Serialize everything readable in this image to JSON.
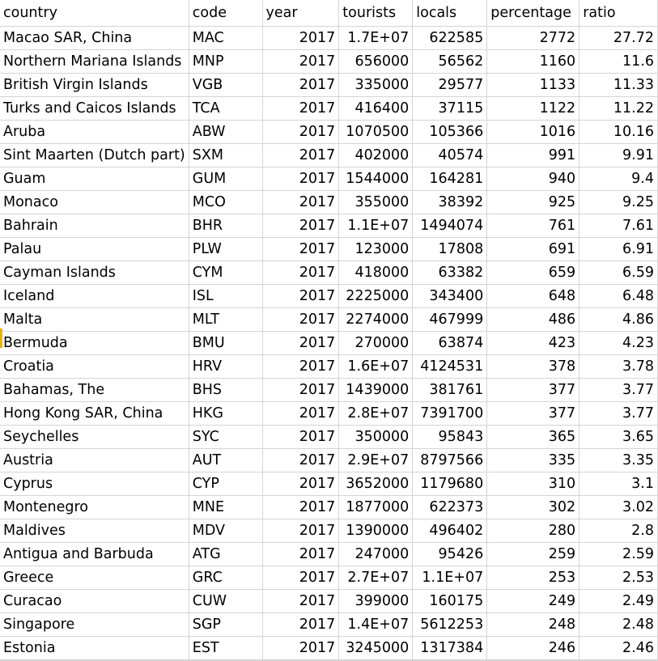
{
  "columns": [
    "country",
    "code",
    "year",
    "tourists",
    "locals",
    "percentage",
    "ratio"
  ],
  "rows": [
    [
      "Macao SAR, China",
      "MAC",
      "2017",
      "1.7E+07",
      "622585",
      "2772",
      "27.72"
    ],
    [
      "Northern Mariana Islands",
      "MNP",
      "2017",
      "656000",
      "56562",
      "1160",
      "11.6"
    ],
    [
      "British Virgin Islands",
      "VGB",
      "2017",
      "335000",
      "29577",
      "1133",
      "11.33"
    ],
    [
      "Turks and Caicos Islands",
      "TCA",
      "2017",
      "416400",
      "37115",
      "1122",
      "11.22"
    ],
    [
      "Aruba",
      "ABW",
      "2017",
      "1070500",
      "105366",
      "1016",
      "10.16"
    ],
    [
      "Sint Maarten (Dutch part)",
      "SXM",
      "2017",
      "402000",
      "40574",
      "991",
      "9.91"
    ],
    [
      "Guam",
      "GUM",
      "2017",
      "1544000",
      "164281",
      "940",
      "9.4"
    ],
    [
      "Monaco",
      "MCO",
      "2017",
      "355000",
      "38392",
      "925",
      "9.25"
    ],
    [
      "Bahrain",
      "BHR",
      "2017",
      "1.1E+07",
      "1494074",
      "761",
      "7.61"
    ],
    [
      "Palau",
      "PLW",
      "2017",
      "123000",
      "17808",
      "691",
      "6.91"
    ],
    [
      "Cayman Islands",
      "CYM",
      "2017",
      "418000",
      "63382",
      "659",
      "6.59"
    ],
    [
      "Iceland",
      "ISL",
      "2017",
      "2225000",
      "343400",
      "648",
      "6.48"
    ],
    [
      "Malta",
      "MLT",
      "2017",
      "2274000",
      "467999",
      "486",
      "4.86"
    ],
    [
      "Bermuda",
      "BMU",
      "2017",
      "270000",
      "63874",
      "423",
      "4.23"
    ],
    [
      "Croatia",
      "HRV",
      "2017",
      "1.6E+07",
      "4124531",
      "378",
      "3.78"
    ],
    [
      "Bahamas, The",
      "BHS",
      "2017",
      "1439000",
      "381761",
      "377",
      "3.77"
    ],
    [
      "Hong Kong SAR, China",
      "HKG",
      "2017",
      "2.8E+07",
      "7391700",
      "377",
      "3.77"
    ],
    [
      "Seychelles",
      "SYC",
      "2017",
      "350000",
      "95843",
      "365",
      "3.65"
    ],
    [
      "Austria",
      "AUT",
      "2017",
      "2.9E+07",
      "8797566",
      "335",
      "3.35"
    ],
    [
      "Cyprus",
      "CYP",
      "2017",
      "3652000",
      "1179680",
      "310",
      "3.1"
    ],
    [
      "Montenegro",
      "MNE",
      "2017",
      "1877000",
      "622373",
      "302",
      "3.02"
    ],
    [
      "Maldives",
      "MDV",
      "2017",
      "1390000",
      "496402",
      "280",
      "2.8"
    ],
    [
      "Antigua and Barbuda",
      "ATG",
      "2017",
      "247000",
      "95426",
      "259",
      "2.59"
    ],
    [
      "Greece",
      "GRC",
      "2017",
      "2.7E+07",
      "1.1E+07",
      "253",
      "2.53"
    ],
    [
      "Curacao",
      "CUW",
      "2017",
      "399000",
      "160175",
      "249",
      "2.49"
    ],
    [
      "Singapore",
      "SGP",
      "2017",
      "1.4E+07",
      "5612253",
      "248",
      "2.48"
    ],
    [
      "Estonia",
      "EST",
      "2017",
      "3245000",
      "1317384",
      "246",
      "2.46"
    ]
  ],
  "alignment": [
    "left",
    "left",
    "right",
    "right",
    "right",
    "right",
    "right"
  ],
  "colors": {
    "gridline": "#d4d4d4",
    "row_marker": "#e6b400"
  }
}
